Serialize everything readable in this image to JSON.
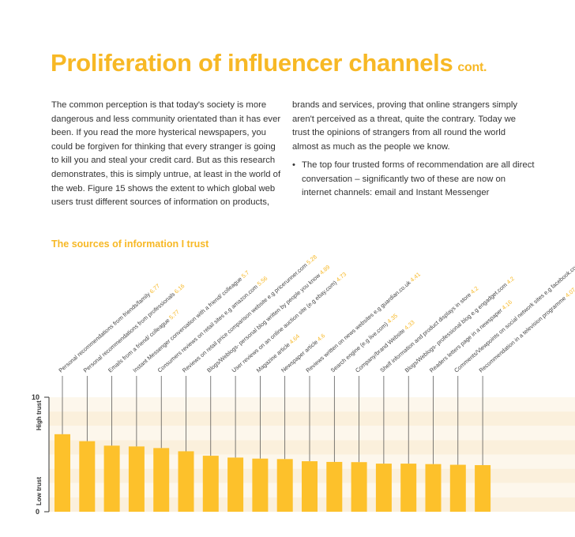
{
  "header": {
    "title": "Proliferation of influencer channels",
    "suffix": "cont."
  },
  "body": {
    "col1": "The common perception is that today's society is more dangerous and less community orientated than it has ever been. If you read the more hysterical newspapers, you could be forgiven for thinking that every stranger is going to kill you and steal your credit card. But as this research demonstrates, this is simply untrue, at least in the world of the web. Figure 15 shows the extent to which global web users trust different sources of information on products,",
    "col2": "brands and services, proving that online strangers simply aren't perceived as a threat, quite the contrary. Today we trust the opinions of strangers from all round the world almost as much as the people we know.",
    "bullet": "The top four trusted forms of recommendation are all direct conversation – significantly two of these are now on internet channels: email and Instant Messenger"
  },
  "chart_data": {
    "type": "bar",
    "title": "The sources of information I trust",
    "y_label_high": "High trust",
    "y_label_low": "Low trust",
    "categories": [
      "Personal recommendations from friends/family",
      "Personal recommendations from professionals",
      "Emails from a friend/ colleague",
      "Instant Messenger conversation with a friend/ colleague",
      "Consumers reviews on retail sites e.g amazon.com",
      "Reviews on retail price comparison website e.g pricerunner.com",
      "Blogs/Weblogs- personal blog written by people you know",
      "User reviews on an online auction site (e.g ebay.com)",
      "Magazine article",
      "Newspaper article",
      "Reviews written on news websites e.g guardian.co.uk",
      "Search engine (e.g live.com)",
      "Company/brand Website",
      "Shelf information and product displays in store",
      "Blogs/Weblogs- professional blog e.g engadget.com",
      "Readers letters page in a newspaper",
      "Comments/Viewpoints on social network sites e.g facebook.com",
      "Recommendation in a television programme"
    ],
    "values": [
      6.77,
      6.16,
      5.77,
      5.7,
      5.56,
      5.28,
      4.89,
      4.73,
      4.64,
      4.6,
      4.41,
      4.35,
      4.33,
      4.2,
      4.2,
      4.16,
      4.1,
      4.07
    ],
    "color": "#fdc12b",
    "ylim": [
      0,
      10
    ],
    "yticks": [
      0,
      10
    ]
  }
}
